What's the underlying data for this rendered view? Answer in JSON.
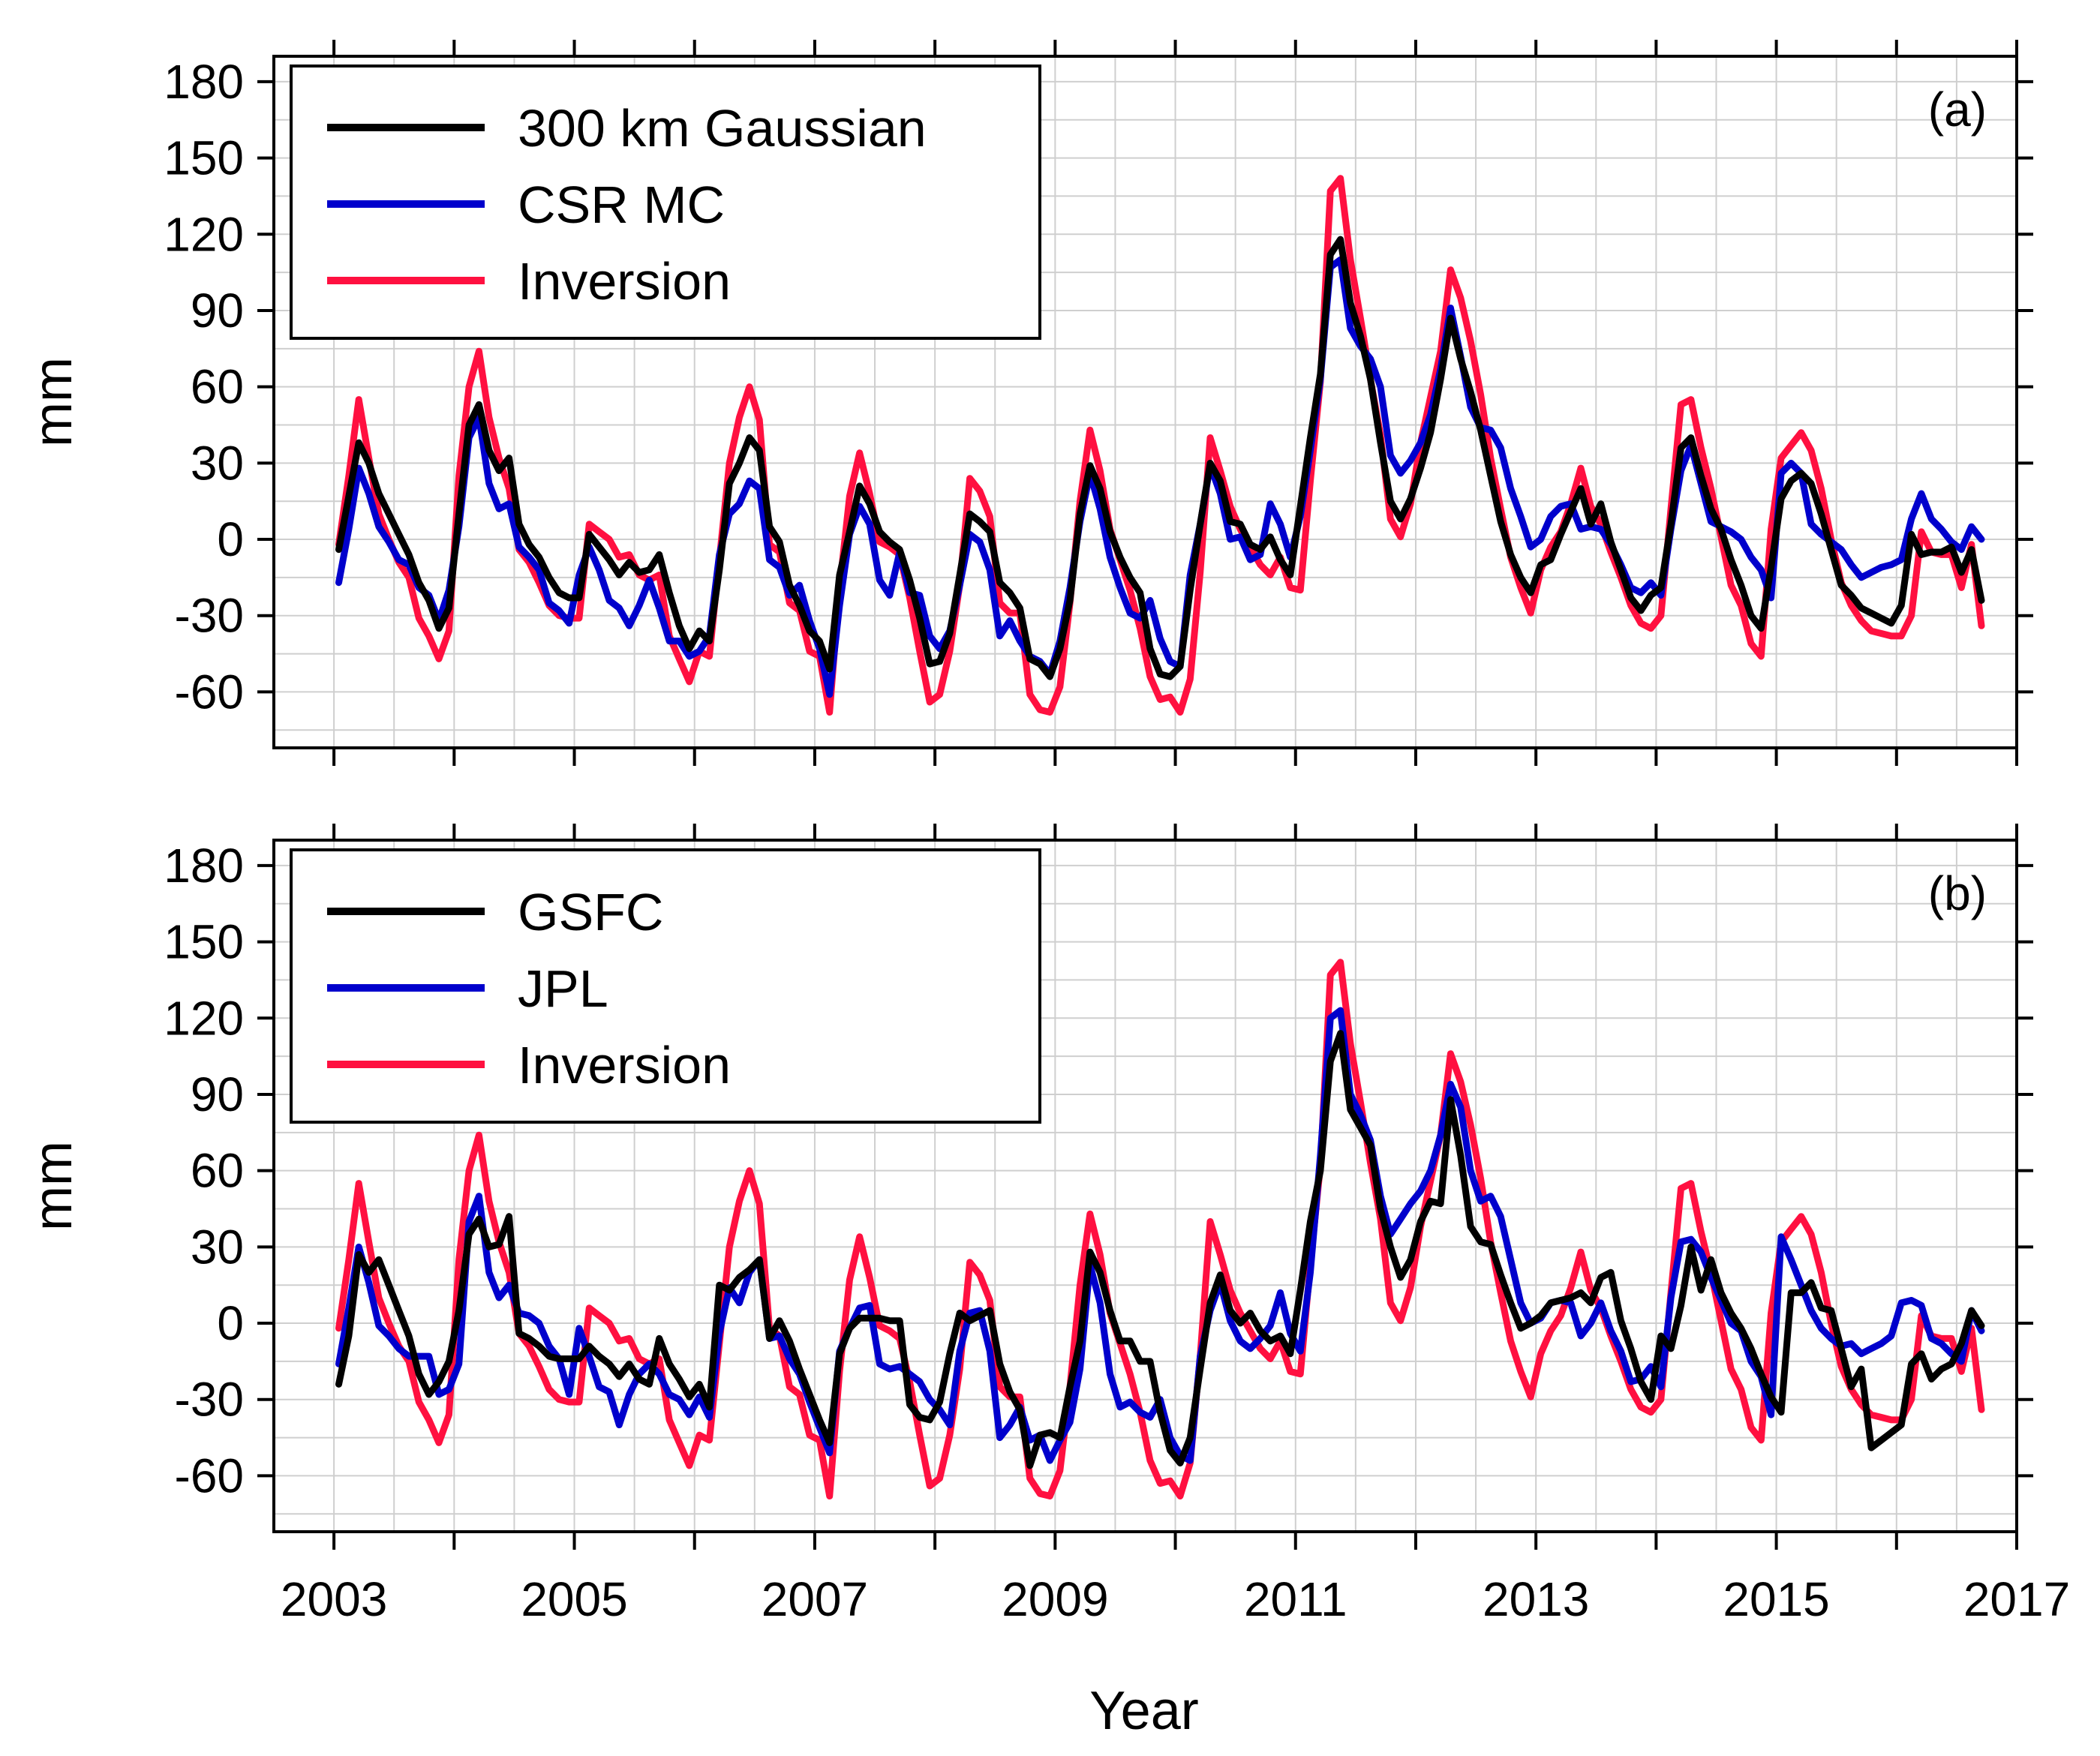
{
  "colors": {
    "black": "#000000",
    "blue": "#0000cc",
    "red": "#ff1040",
    "grid": "#cfcfcf"
  },
  "shared": {
    "xlabel": "Year",
    "xlim": [
      2002.5,
      2017.0
    ],
    "x_ticks": [
      2003,
      2005,
      2007,
      2009,
      2011,
      2013,
      2015,
      2017
    ],
    "ylim": [
      -82,
      190
    ],
    "y_ticks": [
      -60,
      -30,
      0,
      30,
      60,
      90,
      120,
      150,
      180
    ]
  },
  "chart_data": [
    {
      "type": "line",
      "panel": "(a)",
      "ylabel": "mm",
      "legend_position": "top-left",
      "x": {
        "start": 2003.04,
        "step": 0.0833333,
        "count": 165
      },
      "series": [
        {
          "name": "300 km Gaussian",
          "color": "#000000",
          "values": [
            -4,
            17,
            38,
            30,
            18,
            10,
            2,
            -6,
            -17,
            -24,
            -35,
            -27,
            10,
            45,
            53,
            35,
            27,
            32,
            6,
            -2,
            -7,
            -15,
            -21,
            -23,
            -23,
            2,
            -3,
            -8,
            -14,
            -9,
            -13,
            -12,
            -6,
            -21,
            -34,
            -43,
            -36,
            -40,
            -12,
            22,
            30,
            40,
            35,
            5,
            -1,
            -18,
            -26,
            -36,
            -40,
            -51,
            -14,
            3,
            21,
            14,
            3,
            -1,
            -4,
            -16,
            -31,
            -49,
            -48,
            -37,
            -14,
            10,
            7,
            3,
            -17,
            -21,
            -27,
            -47,
            -49,
            -54,
            -43,
            -24,
            10,
            29,
            20,
            3,
            -7,
            -15,
            -21,
            -43,
            -53,
            -54,
            -50,
            -20,
            6,
            30,
            23,
            7,
            6,
            -2,
            -4,
            1,
            -8,
            -14,
            13,
            40,
            65,
            112,
            118,
            93,
            80,
            63,
            38,
            15,
            8,
            16,
            28,
            42,
            63,
            87,
            71,
            58,
            43,
            25,
            7,
            -6,
            -15,
            -21,
            -10,
            -8,
            2,
            11,
            20,
            6,
            14,
            -1,
            -12,
            -23,
            -28,
            -22,
            -19,
            6,
            36,
            40,
            25,
            12,
            4,
            -8,
            -18,
            -30,
            -35,
            -11,
            16,
            23,
            26,
            22,
            10,
            -4,
            -18,
            -22,
            -27,
            -29,
            -31,
            -33,
            -26,
            2,
            -6,
            -5,
            -5,
            -3,
            -13,
            -4,
            -24
          ]
        },
        {
          "name": "CSR MC",
          "color": "#0000cc",
          "values": [
            -17,
            4,
            28,
            18,
            5,
            -1,
            -8,
            -10,
            -19,
            -22,
            -32,
            -20,
            5,
            40,
            48,
            22,
            12,
            14,
            -3,
            -7,
            -12,
            -25,
            -28,
            -33,
            -14,
            -3,
            -12,
            -24,
            -27,
            -34,
            -26,
            -16,
            -27,
            -40,
            -40,
            -46,
            -44,
            -38,
            -6,
            10,
            14,
            23,
            20,
            -8,
            -11,
            -22,
            -18,
            -32,
            -43,
            -61,
            -26,
            2,
            13,
            6,
            -16,
            -22,
            -5,
            -21,
            -22,
            -38,
            -43,
            -36,
            -18,
            2,
            -1,
            -12,
            -38,
            -32,
            -40,
            -46,
            -48,
            -53,
            -40,
            -19,
            7,
            26,
            12,
            -7,
            -19,
            -29,
            -31,
            -24,
            -39,
            -48,
            -50,
            -14,
            6,
            29,
            18,
            0,
            1,
            -8,
            -6,
            14,
            6,
            -7,
            9,
            35,
            63,
            107,
            110,
            83,
            76,
            71,
            60,
            33,
            26,
            31,
            38,
            49,
            67,
            91,
            72,
            52,
            44,
            43,
            36,
            20,
            9,
            -3,
            0,
            9,
            13,
            14,
            4,
            5,
            4,
            -2,
            -10,
            -19,
            -21,
            -17,
            -22,
            4,
            27,
            37,
            22,
            7,
            5,
            3,
            0,
            -7,
            -12,
            -23,
            26,
            30,
            26,
            6,
            2,
            -1,
            -4,
            -10,
            -15,
            -13,
            -11,
            -10,
            -8,
            8,
            18,
            8,
            4,
            -1,
            -4,
            5,
            0
          ]
        },
        {
          "name": "Inversion",
          "color": "#ff1040",
          "values": [
            -2,
            25,
            55,
            32,
            10,
            0,
            -9,
            -15,
            -31,
            -38,
            -47,
            -36,
            25,
            60,
            74,
            48,
            32,
            20,
            -4,
            -9,
            -17,
            -26,
            -30,
            -31,
            -31,
            6,
            3,
            0,
            -7,
            -6,
            -14,
            -16,
            -14,
            -38,
            -47,
            -56,
            -44,
            -46,
            -8,
            30,
            48,
            60,
            47,
            -2,
            -5,
            -25,
            -28,
            -44,
            -46,
            -68,
            -19,
            17,
            34,
            18,
            -1,
            -3,
            -6,
            -23,
            -44,
            -64,
            -61,
            -44,
            -18,
            24,
            19,
            9,
            -25,
            -29,
            -29,
            -61,
            -67,
            -68,
            -58,
            -25,
            15,
            43,
            27,
            4,
            -8,
            -20,
            -35,
            -54,
            -63,
            -62,
            -68,
            -55,
            -13,
            40,
            27,
            13,
            4,
            -3,
            -10,
            -14,
            -7,
            -19,
            -20,
            23,
            62,
            137,
            142,
            110,
            87,
            63,
            41,
            8,
            1,
            14,
            38,
            56,
            74,
            106,
            95,
            78,
            57,
            32,
            12,
            -7,
            -19,
            -29,
            -12,
            -3,
            3,
            14,
            28,
            13,
            6,
            -5,
            -15,
            -26,
            -33,
            -35,
            -30,
            12,
            53,
            55,
            36,
            20,
            1,
            -18,
            -26,
            -41,
            -46,
            4,
            32,
            37,
            42,
            35,
            20,
            0,
            -17,
            -26,
            -32,
            -36,
            -37,
            -38,
            -38,
            -30,
            3,
            -5,
            -6,
            -6,
            -19,
            -2,
            -34
          ]
        }
      ]
    },
    {
      "type": "line",
      "panel": "(b)",
      "ylabel": "mm",
      "legend_position": "top-left",
      "x": {
        "start": 2003.04,
        "step": 0.0833333,
        "count": 165
      },
      "series": [
        {
          "name": "GSFC",
          "color": "#000000",
          "values": [
            -24,
            -5,
            27,
            20,
            25,
            15,
            5,
            -5,
            -20,
            -28,
            -23,
            -15,
            5,
            35,
            41,
            30,
            31,
            42,
            -4,
            -6,
            -9,
            -13,
            -14,
            -14,
            -14,
            -9,
            -13,
            -16,
            -21,
            -16,
            -22,
            -24,
            -6,
            -16,
            -22,
            -29,
            -24,
            -33,
            15,
            13,
            18,
            21,
            25,
            -6,
            1,
            -7,
            -18,
            -28,
            -38,
            -47,
            -12,
            -2,
            2,
            2,
            2,
            1,
            1,
            -32,
            -37,
            -38,
            -31,
            -12,
            4,
            1,
            3,
            5,
            -16,
            -27,
            -34,
            -56,
            -44,
            -43,
            -45,
            -25,
            -7,
            28,
            20,
            5,
            -7,
            -7,
            -15,
            -15,
            -35,
            -50,
            -55,
            -45,
            -18,
            8,
            19,
            5,
            0,
            4,
            -3,
            -7,
            -5,
            -12,
            13,
            40,
            60,
            103,
            114,
            84,
            77,
            70,
            45,
            30,
            18,
            25,
            40,
            48,
            47,
            88,
            66,
            38,
            32,
            31,
            19,
            8,
            -2,
            0,
            3,
            8,
            9,
            10,
            12,
            8,
            18,
            20,
            1,
            -10,
            -23,
            -30,
            -5,
            -10,
            7,
            30,
            13,
            25,
            12,
            4,
            -2,
            -10,
            -20,
            -29,
            -35,
            12,
            12,
            16,
            6,
            5,
            -10,
            -25,
            -18,
            -49,
            -46,
            -43,
            -40,
            -16,
            -12,
            -22,
            -18,
            -16,
            -8,
            5,
            -1
          ]
        },
        {
          "name": "JPL",
          "color": "#0000cc",
          "values": [
            -16,
            6,
            30,
            16,
            -1,
            -5,
            -10,
            -13,
            -13,
            -13,
            -28,
            -26,
            -16,
            40,
            50,
            20,
            10,
            15,
            4,
            3,
            0,
            -9,
            -14,
            -28,
            -2,
            -13,
            -25,
            -27,
            -40,
            -28,
            -20,
            -16,
            -20,
            -28,
            -30,
            -36,
            -29,
            -37,
            -4,
            14,
            8,
            20,
            25,
            -6,
            -5,
            -14,
            -20,
            -31,
            -41,
            -51,
            -11,
            -2,
            6,
            7,
            -16,
            -18,
            -17,
            -20,
            -23,
            -30,
            -34,
            -40,
            -11,
            4,
            5,
            -11,
            -45,
            -40,
            -33,
            -46,
            -44,
            -54,
            -46,
            -39,
            -18,
            23,
            8,
            -20,
            -33,
            -31,
            -35,
            -37,
            -30,
            -45,
            -52,
            -54,
            -13,
            5,
            16,
            1,
            -7,
            -10,
            -6,
            -1,
            12,
            -4,
            -11,
            20,
            66,
            120,
            123,
            90,
            82,
            72,
            50,
            35,
            41,
            47,
            52,
            60,
            74,
            94,
            85,
            60,
            48,
            50,
            42,
            25,
            8,
            0,
            2,
            8,
            9,
            8,
            -5,
            0,
            8,
            -3,
            -11,
            -23,
            -22,
            -17,
            -25,
            10,
            32,
            33,
            28,
            18,
            9,
            0,
            -3,
            -15,
            -21,
            -36,
            34,
            25,
            15,
            5,
            -2,
            -6,
            -9,
            -8,
            -12,
            -10,
            -8,
            -5,
            8,
            9,
            7,
            -6,
            -8,
            -12,
            -15,
            5,
            -3
          ]
        },
        {
          "name": "Inversion",
          "color": "#ff1040",
          "values": [
            -2,
            25,
            55,
            32,
            10,
            0,
            -9,
            -15,
            -31,
            -38,
            -47,
            -36,
            25,
            60,
            74,
            48,
            32,
            20,
            -4,
            -9,
            -17,
            -26,
            -30,
            -31,
            -31,
            6,
            3,
            0,
            -7,
            -6,
            -14,
            -16,
            -14,
            -38,
            -47,
            -56,
            -44,
            -46,
            -8,
            30,
            48,
            60,
            47,
            -2,
            -5,
            -25,
            -28,
            -44,
            -46,
            -68,
            -19,
            17,
            34,
            18,
            -1,
            -3,
            -6,
            -23,
            -44,
            -64,
            -61,
            -44,
            -18,
            24,
            19,
            9,
            -25,
            -29,
            -29,
            -61,
            -67,
            -68,
            -58,
            -25,
            15,
            43,
            27,
            4,
            -8,
            -20,
            -35,
            -54,
            -63,
            -62,
            -68,
            -55,
            -13,
            40,
            27,
            13,
            4,
            -3,
            -10,
            -14,
            -7,
            -19,
            -20,
            23,
            62,
            137,
            142,
            110,
            87,
            63,
            41,
            8,
            1,
            14,
            38,
            56,
            74,
            106,
            95,
            78,
            57,
            32,
            12,
            -7,
            -19,
            -29,
            -12,
            -3,
            3,
            14,
            28,
            13,
            6,
            -5,
            -15,
            -26,
            -33,
            -35,
            -30,
            12,
            53,
            55,
            36,
            20,
            1,
            -18,
            -26,
            -41,
            -46,
            4,
            32,
            37,
            42,
            35,
            20,
            0,
            -17,
            -26,
            -32,
            -36,
            -37,
            -38,
            -38,
            -30,
            3,
            -5,
            -6,
            -6,
            -19,
            -2,
            -34
          ]
        }
      ]
    }
  ]
}
